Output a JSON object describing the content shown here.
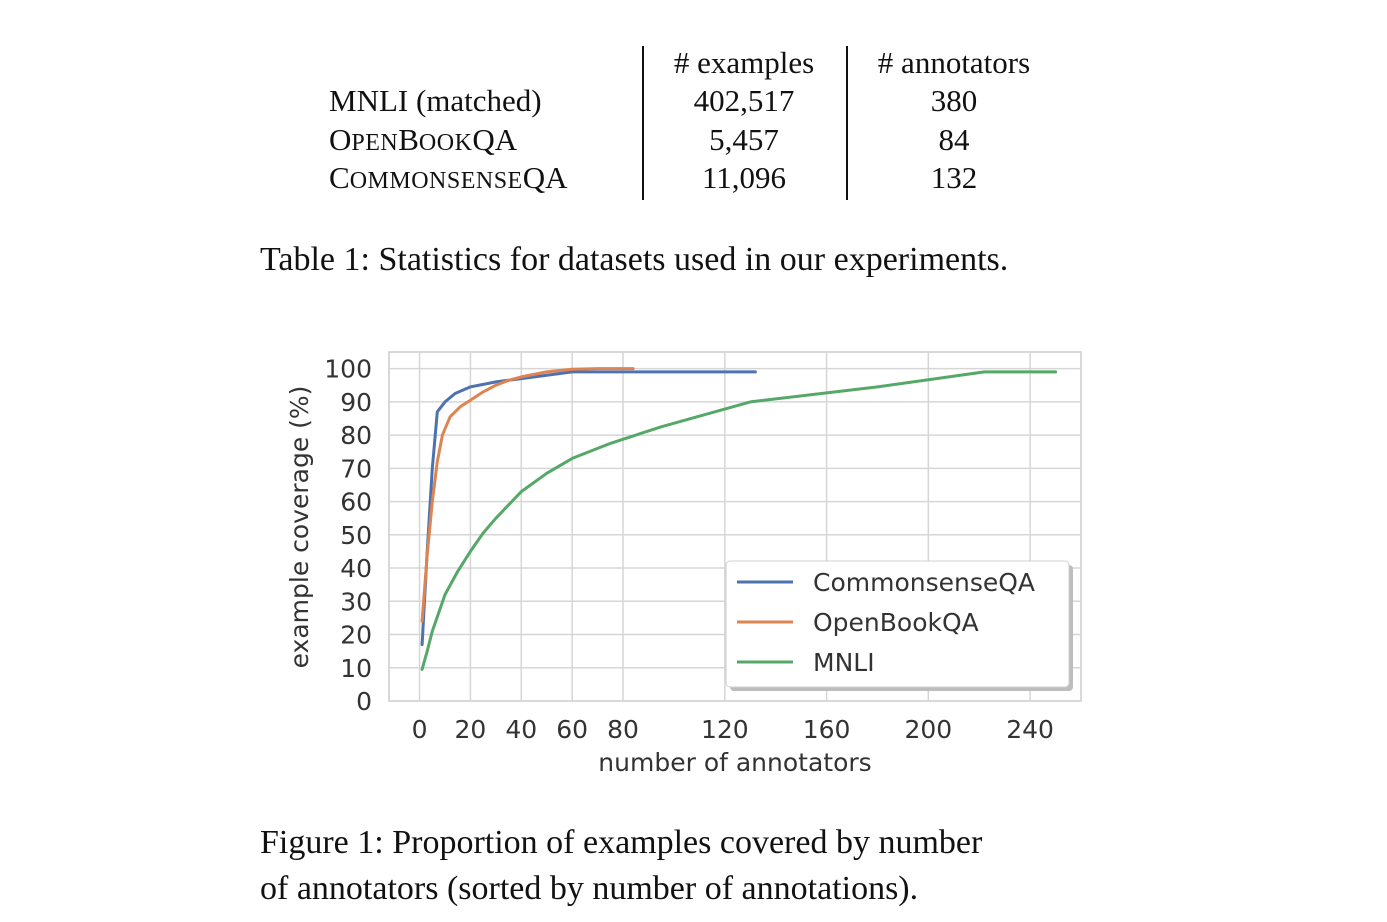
{
  "table": {
    "header": {
      "examples": "# examples",
      "annotators": "# annotators"
    },
    "rows": [
      {
        "name": "MNLI (matched)",
        "examples": "402,517",
        "annotators": "380"
      },
      {
        "name_parts": [
          [
            "O",
            "big"
          ],
          [
            "PEN",
            "small"
          ],
          [
            "B",
            "big"
          ],
          [
            "OOK",
            "small"
          ],
          [
            "QA",
            "big"
          ]
        ],
        "name": "OpenBookQA",
        "examples": "5,457",
        "annotators": "84"
      },
      {
        "name_parts": [
          [
            "C",
            "big"
          ],
          [
            "OMMONSENSE",
            "small"
          ],
          [
            "QA",
            "big"
          ]
        ],
        "name": "CommonsenseQA",
        "examples": "11,096",
        "annotators": "132"
      }
    ],
    "caption": "Table 1: Statistics for datasets used in our experiments."
  },
  "figure": {
    "caption_line1": "Figure 1: Proportion of examples covered by number",
    "caption_line2": "of annotators (sorted by number of annotations)."
  },
  "chart_data": {
    "type": "line",
    "xlabel": "number of annotators",
    "ylabel": "example coverage (%)",
    "xlim": [
      -12,
      260
    ],
    "ylim": [
      0,
      105
    ],
    "xticks": [
      0,
      20,
      40,
      60,
      80,
      120,
      160,
      200,
      240
    ],
    "yticks": [
      0,
      10,
      20,
      30,
      40,
      50,
      60,
      70,
      80,
      90,
      100
    ],
    "grid": true,
    "legend_position": "bottom-right",
    "series": [
      {
        "name": "CommonsenseQA",
        "color": "#4c72b0",
        "x": [
          1,
          3,
          5,
          7,
          10,
          14,
          20,
          30,
          40,
          60,
          80,
          100,
          132
        ],
        "y": [
          17,
          45,
          70,
          87,
          90,
          92.5,
          94.5,
          96,
          97,
          99,
          99,
          99,
          99
        ]
      },
      {
        "name": "OpenBookQA",
        "color": "#dd8452",
        "x": [
          1,
          3,
          5,
          7,
          9,
          12,
          16,
          20,
          25,
          30,
          35,
          40,
          50,
          60,
          70,
          84
        ],
        "y": [
          24,
          44,
          60,
          72,
          80,
          85.5,
          88.5,
          90.5,
          93,
          95,
          96.5,
          97.5,
          99,
          99.8,
          100,
          100
        ]
      },
      {
        "name": "MNLI",
        "color": "#55a868",
        "x": [
          1,
          3,
          5,
          10,
          15,
          20,
          25,
          30,
          40,
          50,
          60,
          75,
          95,
          130,
          180,
          222,
          250
        ],
        "y": [
          9.5,
          15,
          21,
          32,
          39,
          45,
          50.5,
          55,
          63,
          68.5,
          73,
          77.5,
          82.5,
          90,
          94.5,
          99,
          99
        ]
      }
    ]
  }
}
